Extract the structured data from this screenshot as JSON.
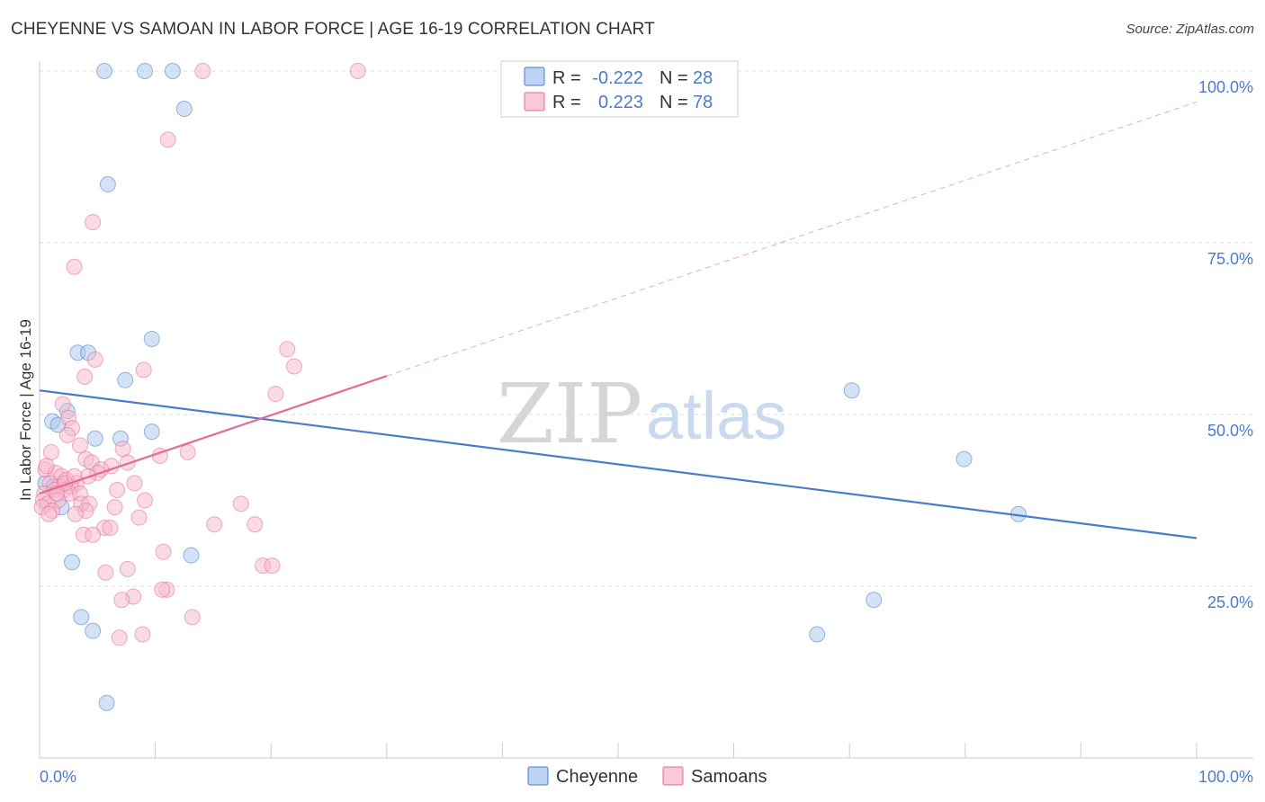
{
  "title": "CHEYENNE VS SAMOAN IN LABOR FORCE | AGE 16-19 CORRELATION CHART",
  "source": "Source: ZipAtlas.com",
  "chart_data": {
    "type": "scatter",
    "xlabel": "",
    "ylabel": "In Labor Force | Age 16-19",
    "xlim": [
      0,
      100
    ],
    "ylim": [
      0,
      100
    ],
    "x_tick_labels": [
      {
        "value": 0,
        "label": "0.0%"
      },
      {
        "value": 100,
        "label": "100.0%"
      }
    ],
    "y_tick_labels": [
      {
        "value": 25,
        "label": "25.0%"
      },
      {
        "value": 50,
        "label": "50.0%"
      },
      {
        "value": 75,
        "label": "75.0%"
      },
      {
        "value": 100,
        "label": "100.0%"
      }
    ],
    "grid": true,
    "watermark": {
      "zip": "ZIP",
      "atlas": "atlas"
    },
    "legend_stats": [
      {
        "r_label": "R =",
        "r_value": "-0.222",
        "n_label": "N =",
        "n_value": "28"
      },
      {
        "r_label": "R =",
        "r_value": "0.223",
        "n_label": "N =",
        "n_value": "78"
      }
    ],
    "series": [
      {
        "name": "Cheyenne",
        "color": "#4a7cc9",
        "fill": "#a9c6ee",
        "trend": {
          "x0": 0,
          "y0": 53.5,
          "x1": 100,
          "y1": 32.0,
          "solid_until": 100
        },
        "points": [
          [
            5.6,
            100
          ],
          [
            9.1,
            100
          ],
          [
            11.5,
            100
          ],
          [
            12.5,
            94.5
          ],
          [
            5.9,
            83.5
          ],
          [
            9.7,
            61
          ],
          [
            3.3,
            59
          ],
          [
            4.2,
            59
          ],
          [
            7.4,
            55
          ],
          [
            1.1,
            49
          ],
          [
            1.6,
            48.5
          ],
          [
            2.4,
            50.5
          ],
          [
            4.8,
            46.5
          ],
          [
            7.0,
            46.5
          ],
          [
            9.7,
            47.5
          ],
          [
            0.5,
            40
          ],
          [
            1.2,
            39.5
          ],
          [
            1.9,
            36.5
          ],
          [
            2.8,
            28.5
          ],
          [
            13.1,
            29.5
          ],
          [
            3.6,
            20.5
          ],
          [
            4.6,
            18.5
          ],
          [
            5.8,
            8
          ],
          [
            67.2,
            18
          ],
          [
            72.1,
            23
          ],
          [
            79.9,
            43.5
          ],
          [
            84.6,
            35.5
          ],
          [
            70.2,
            53.5
          ]
        ]
      },
      {
        "name": "Samoans",
        "color": "#e36a94",
        "fill": "#f5b8cc",
        "trend": {
          "x0": 0,
          "y0": 38.5,
          "x1": 100,
          "y1": 95.5,
          "solid_until": 30
        },
        "points": [
          [
            14.1,
            100
          ],
          [
            27.5,
            100
          ],
          [
            11.1,
            90
          ],
          [
            4.6,
            78
          ],
          [
            3.0,
            71.5
          ],
          [
            21.4,
            59.5
          ],
          [
            22.0,
            57
          ],
          [
            4.8,
            58
          ],
          [
            9.0,
            56.5
          ],
          [
            3.9,
            55.5
          ],
          [
            20.4,
            53
          ],
          [
            2.0,
            51.5
          ],
          [
            2.5,
            49.5
          ],
          [
            2.8,
            48
          ],
          [
            1.0,
            44.5
          ],
          [
            3.5,
            45.5
          ],
          [
            7.2,
            45
          ],
          [
            10.4,
            44
          ],
          [
            12.8,
            44.5
          ],
          [
            4.0,
            43.5
          ],
          [
            4.5,
            43
          ],
          [
            6.2,
            42.5
          ],
          [
            5.3,
            42
          ],
          [
            7.6,
            43
          ],
          [
            0.5,
            42
          ],
          [
            1.4,
            41.5
          ],
          [
            1.9,
            41
          ],
          [
            2.3,
            40.5
          ],
          [
            3.2,
            40
          ],
          [
            2.7,
            39.5
          ],
          [
            1.7,
            39.5
          ],
          [
            0.9,
            40
          ],
          [
            1.3,
            39
          ],
          [
            2.1,
            39
          ],
          [
            0.4,
            38.5
          ],
          [
            2.6,
            38.5
          ],
          [
            3.5,
            38.5
          ],
          [
            6.7,
            39
          ],
          [
            8.2,
            40
          ],
          [
            0.3,
            37.5
          ],
          [
            1.6,
            37.5
          ],
          [
            0.7,
            37
          ],
          [
            9.1,
            37.5
          ],
          [
            17.4,
            37
          ],
          [
            3.6,
            37
          ],
          [
            4.3,
            37
          ],
          [
            6.5,
            36.5
          ],
          [
            4.0,
            36
          ],
          [
            3.1,
            35.5
          ],
          [
            8.6,
            35
          ],
          [
            18.6,
            34
          ],
          [
            15.1,
            34
          ],
          [
            5.6,
            33.5
          ],
          [
            6.1,
            33.5
          ],
          [
            3.8,
            32.5
          ],
          [
            4.6,
            32.5
          ],
          [
            10.7,
            30
          ],
          [
            19.3,
            28
          ],
          [
            20.1,
            28
          ],
          [
            7.6,
            27.5
          ],
          [
            5.7,
            27
          ],
          [
            11.0,
            24.5
          ],
          [
            10.6,
            24.5
          ],
          [
            8.1,
            23.5
          ],
          [
            7.1,
            23
          ],
          [
            13.2,
            20.5
          ],
          [
            8.9,
            18
          ],
          [
            6.9,
            17.5
          ],
          [
            0.2,
            36.5
          ],
          [
            1.1,
            36
          ],
          [
            0.6,
            42.5
          ],
          [
            5.0,
            41.5
          ],
          [
            4.2,
            41
          ],
          [
            2.2,
            40
          ],
          [
            3.0,
            41
          ],
          [
            1.5,
            38.5
          ],
          [
            0.8,
            35.5
          ],
          [
            2.4,
            47
          ]
        ]
      }
    ]
  }
}
